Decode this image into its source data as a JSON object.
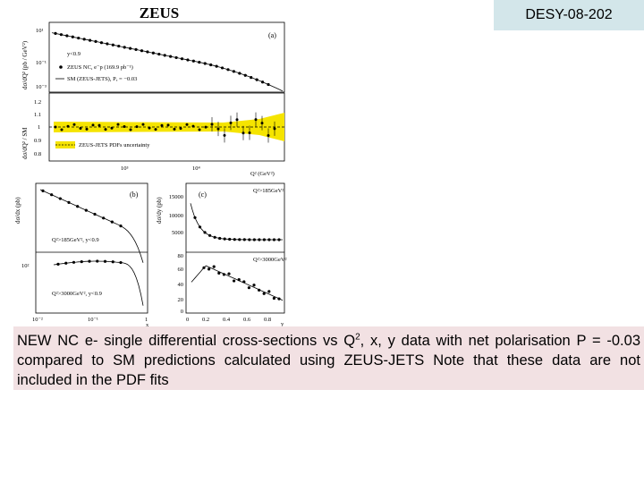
{
  "header": {
    "label": "DESY-08-202"
  },
  "figure": {
    "title": "ZEUS",
    "panel_a": {
      "tag": "(a)",
      "y_axis_label": "dσ/dQ² (pb / GeV²)",
      "yticks": [
        "10¹",
        "10⁻¹",
        "10⁻³"
      ],
      "legend": [
        "y<0.9",
        "ZEUS NC, e⁻p (169.9 pb⁻¹)",
        "SM (ZEUS-JETS), Pₑ = −0.03"
      ]
    },
    "ratio": {
      "y_axis_label": "dσ/dQ² / SM",
      "yticks": [
        "1.2",
        "1.1",
        "1",
        "0.9",
        "0.8"
      ],
      "legend": "ZEUS-JETS PDFs uncertainty",
      "xticks": [
        "10³",
        "10⁴"
      ],
      "x_axis_label": "Q² (GeV²)"
    },
    "panel_b": {
      "tag": "(b)",
      "y_axis_label": "dσ/dx (pb)",
      "yticks": [
        "10²"
      ],
      "xticks": [
        "10⁻²",
        "10⁻¹",
        "1"
      ],
      "legend_top": "Q²>185GeV², y<0.9",
      "legend_bottom": "Q²>3000GeV², y<0.9",
      "x_axis_label": "x"
    },
    "panel_c": {
      "tag": "(c)",
      "y_axis_label": "dσ/dy (pb)",
      "yticks_top": [
        "15000",
        "10000",
        "5000"
      ],
      "yticks_bottom": [
        "80",
        "60",
        "40",
        "20",
        "0"
      ],
      "xticks": [
        "0",
        "0.2",
        "0.4",
        "0.6",
        "0.8"
      ],
      "legend_top": "Q²>185GeV²",
      "legend_bottom": "Q²>3000GeV²",
      "x_axis_label": "y"
    }
  },
  "caption": {
    "before": "NEW NC e- single differential cross-sections vs Q",
    "superscript": "2",
    "after": ", x, y data with net polarisation P = -0.03 compared to SM predictions calculated using ZEUS-JETS Note that these data are not included in the PDF fits"
  }
}
